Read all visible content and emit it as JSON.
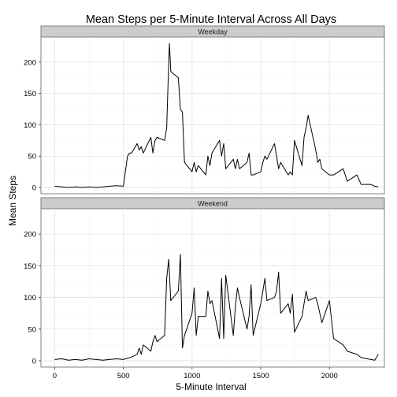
{
  "chart_data": {
    "type": "line",
    "title": "Mean Steps per 5-Minute Interval Across All Days",
    "xlabel": "5-Minute Interval",
    "ylabel": "Mean Steps",
    "xlim": [
      -100,
      2400
    ],
    "ylim": [
      -10,
      240
    ],
    "x_ticks": [
      0,
      500,
      1000,
      1500,
      2000
    ],
    "y_ticks": [
      0,
      50,
      100,
      150,
      200
    ],
    "grid": true,
    "facets": [
      {
        "label": "Weekday",
        "x": [
          0,
          50,
          100,
          150,
          200,
          250,
          300,
          350,
          400,
          450,
          500,
          530,
          545,
          560,
          600,
          615,
          630,
          645,
          700,
          715,
          730,
          745,
          800,
          815,
          830,
          835,
          845,
          900,
          915,
          930,
          945,
          1000,
          1015,
          1030,
          1045,
          1100,
          1115,
          1130,
          1145,
          1200,
          1215,
          1230,
          1245,
          1300,
          1315,
          1330,
          1345,
          1400,
          1415,
          1430,
          1445,
          1500,
          1515,
          1530,
          1545,
          1600,
          1615,
          1630,
          1645,
          1700,
          1715,
          1730,
          1745,
          1800,
          1815,
          1830,
          1845,
          1900,
          1915,
          1930,
          1945,
          2000,
          2030,
          2100,
          2130,
          2200,
          2230,
          2300,
          2330,
          2355
        ],
        "y": [
          2,
          1,
          0,
          1,
          0,
          1,
          0,
          1,
          2,
          3,
          2,
          50,
          55,
          55,
          70,
          60,
          65,
          55,
          80,
          55,
          75,
          80,
          75,
          95,
          200,
          230,
          185,
          175,
          125,
          120,
          40,
          25,
          40,
          25,
          35,
          20,
          50,
          35,
          55,
          75,
          50,
          70,
          30,
          45,
          30,
          45,
          30,
          40,
          55,
          20,
          20,
          25,
          40,
          50,
          45,
          70,
          50,
          30,
          40,
          20,
          25,
          20,
          75,
          35,
          80,
          95,
          115,
          60,
          40,
          45,
          30,
          20,
          20,
          30,
          10,
          20,
          5,
          5,
          2,
          1
        ]
      },
      {
        "label": "Weekend",
        "x": [
          0,
          50,
          100,
          150,
          200,
          250,
          300,
          350,
          400,
          450,
          500,
          550,
          600,
          615,
          630,
          645,
          700,
          715,
          730,
          745,
          800,
          815,
          830,
          845,
          900,
          915,
          930,
          945,
          1000,
          1015,
          1030,
          1045,
          1100,
          1115,
          1130,
          1145,
          1200,
          1215,
          1230,
          1245,
          1300,
          1315,
          1330,
          1345,
          1400,
          1415,
          1430,
          1445,
          1500,
          1515,
          1530,
          1545,
          1600,
          1615,
          1630,
          1645,
          1700,
          1715,
          1730,
          1745,
          1800,
          1815,
          1830,
          1845,
          1900,
          1915,
          1930,
          1945,
          2000,
          2030,
          2100,
          2130,
          2200,
          2230,
          2300,
          2330,
          2355
        ],
        "y": [
          2,
          3,
          1,
          2,
          1,
          3,
          2,
          1,
          2,
          3,
          2,
          5,
          10,
          20,
          10,
          25,
          15,
          30,
          40,
          30,
          40,
          130,
          160,
          95,
          110,
          168,
          20,
          40,
          75,
          115,
          40,
          70,
          70,
          110,
          90,
          95,
          35,
          130,
          35,
          135,
          40,
          85,
          115,
          100,
          50,
          70,
          120,
          40,
          90,
          110,
          130,
          95,
          100,
          110,
          140,
          75,
          90,
          75,
          105,
          45,
          70,
          90,
          110,
          95,
          100,
          90,
          75,
          60,
          95,
          35,
          25,
          15,
          10,
          5,
          2,
          1,
          10
        ]
      }
    ]
  }
}
